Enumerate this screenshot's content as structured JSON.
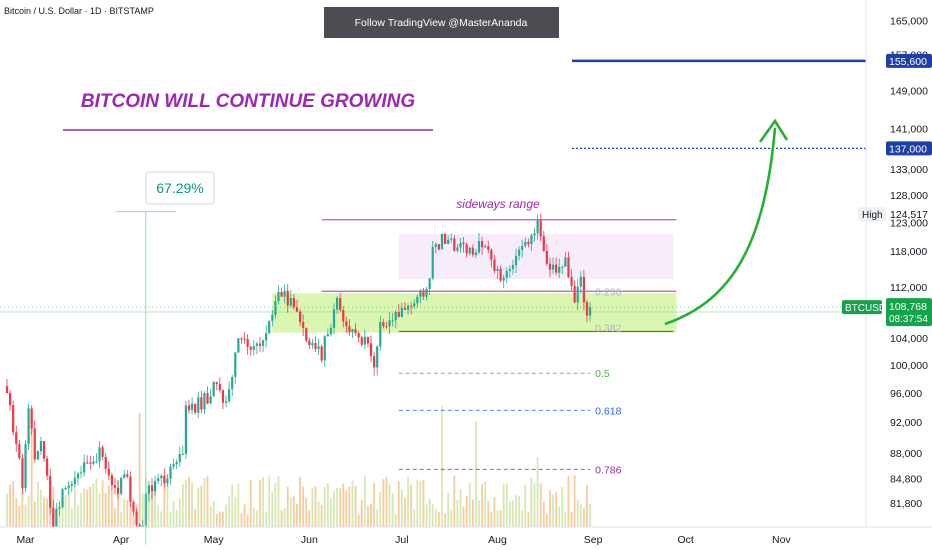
{
  "header": {
    "symbol_desc": "Bitcoin / U.S. Dollar · 1D · BITSTAMP",
    "follow_banner": "Follow TradingView @MasterAnanda"
  },
  "annotations": {
    "headline": "BITCOIN WILL CONTINUE GROWING",
    "range_label": "sideways range",
    "percent_change": "67.29%"
  },
  "colors": {
    "headline": "#9c27b0",
    "up": "#089981",
    "candle_up": "#22ab94",
    "candle_down": "#f23645",
    "green_arrow": "#22b22e",
    "target_line": "#1e3fa8",
    "range_line": "#b65cc8",
    "support_zone": "#d7f5a8",
    "range_zone": "#f6ecfa"
  },
  "chart_data": {
    "type": "candlestick",
    "symbol": "BTCUSD",
    "timeframe": "1D",
    "exchange": "BITSTAMP",
    "y_scale": "log",
    "ylim": [
      79000,
      170000
    ],
    "y_ticks": [
      165000,
      157000,
      149000,
      141000,
      133000,
      128000,
      123000,
      118000,
      112000,
      104000,
      100000,
      96000,
      92000,
      88000,
      84800,
      81800
    ],
    "x_ticks": [
      "Mar",
      "Apr",
      "May",
      "Jun",
      "Jul",
      "Aug",
      "Sep",
      "Oct",
      "Nov"
    ],
    "x_tick_dates": [
      "2025-03-01",
      "2025-04-01",
      "2025-05-01",
      "2025-06-01",
      "2025-07-01",
      "2025-08-01",
      "2025-09-01",
      "2025-10-01",
      "2025-11-01"
    ],
    "last_price": {
      "label": "BTCUSD",
      "value": "108,768",
      "countdown": "08:37:54",
      "raw": 108768
    },
    "high_marker": {
      "label": "High",
      "value": "124,517",
      "raw": 124517
    },
    "targets": [
      {
        "value": "155,600",
        "raw": 155600,
        "style": "solid"
      },
      {
        "value": "137,000",
        "raw": 137000,
        "style": "dotted"
      }
    ],
    "fib_levels": [
      {
        "label": "0.236",
        "price": 111300,
        "color": "#b2b5be"
      },
      {
        "label": "0.382",
        "price": 105600,
        "color": "#b2b5be"
      },
      {
        "label": "0.5",
        "price": 98800,
        "color": "#4caf50"
      },
      {
        "label": "0.618",
        "price": 93600,
        "color": "#2962ff"
      },
      {
        "label": "0.786",
        "price": 85900,
        "color": "#9c27b0"
      }
    ],
    "sideways_range": {
      "top": 123500,
      "bottom": 111300
    },
    "support_zone": {
      "top": 111000,
      "bottom": 104800
    },
    "percent_change_box": {
      "text": "67.29%",
      "from_date": "2025-04-09",
      "to_date": "2025-05-22"
    }
  }
}
